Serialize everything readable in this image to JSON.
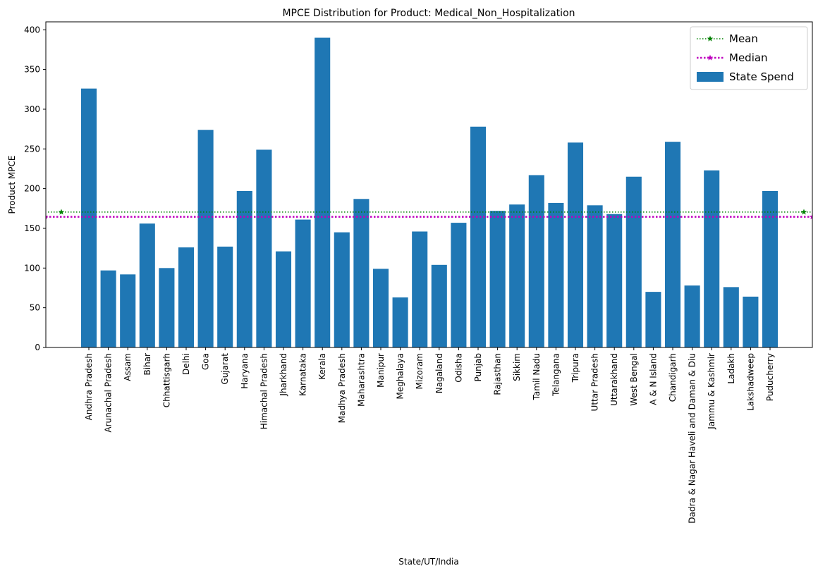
{
  "chart_data": {
    "type": "bar",
    "title": "MPCE Distribution for Product: Medical_Non_Hospitalization",
    "xlabel": "State/UT/India",
    "ylabel": "Product MPCE",
    "ylim": [
      0,
      410
    ],
    "yticks": [
      0,
      50,
      100,
      150,
      200,
      250,
      300,
      350,
      400
    ],
    "grid": false,
    "legend_position": "top-right",
    "categories": [
      "Andhra Pradesh",
      "Arunachal Pradesh",
      "Assam",
      "Bihar",
      "Chhattisgarh",
      "Delhi",
      "Goa",
      "Gujarat",
      "Haryana",
      "Himachal Pradesh",
      "Jharkhand",
      "Karnataka",
      "Kerala",
      "Madhya Pradesh",
      "Maharashtra",
      "Manipur",
      "Meghalaya",
      "Mizoram",
      "Nagaland",
      "Odisha",
      "Punjab",
      "Rajasthan",
      "Sikkim",
      "Tamil Nadu",
      "Telangana",
      "Tripura",
      "Uttar Pradesh",
      "Uttarakhand",
      "West Bengal",
      "A & N Island",
      "Chandigarh",
      "Dadra & Nagar Haveli and Daman & Diu",
      "Jammu & Kashmir",
      "Ladakh",
      "Lakshadweep",
      "Puducherry"
    ],
    "series": [
      {
        "name": "State Spend",
        "color": "#1f77b4",
        "values": [
          326,
          97,
          92,
          156,
          100,
          126,
          274,
          127,
          197,
          249,
          121,
          161,
          390,
          145,
          187,
          99,
          63,
          146,
          104,
          157,
          278,
          172,
          180,
          217,
          182,
          258,
          179,
          168,
          215,
          70,
          259,
          78,
          223,
          76,
          64,
          197
        ]
      }
    ],
    "reference_lines": [
      {
        "name": "Mean",
        "value": 170.5,
        "color": "#008000",
        "style": "dotted",
        "marker": "star"
      },
      {
        "name": "Median",
        "value": 164.5,
        "color": "#bf00bf",
        "style": "dotted-thick",
        "marker": "star"
      }
    ]
  }
}
